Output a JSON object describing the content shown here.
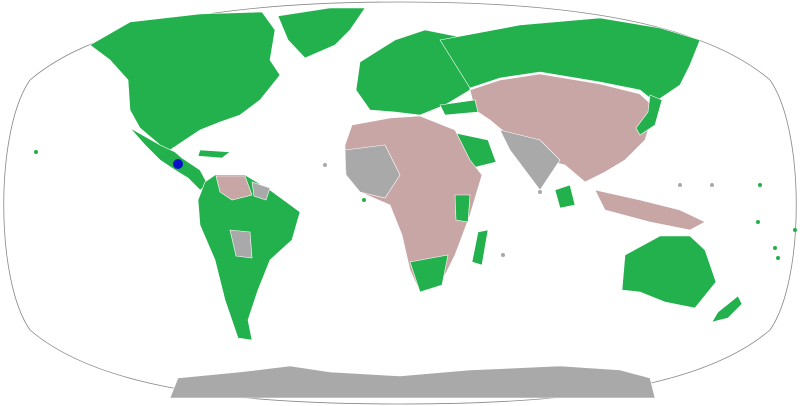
{
  "map": {
    "projection": "Robinson",
    "colors": {
      "green": "#22b14c",
      "pink": "#c9a6a6",
      "gray": "#a9a9a9",
      "blue": "#0a10c8",
      "ocean": "#ffffff",
      "border": "#ffffff"
    }
  }
}
